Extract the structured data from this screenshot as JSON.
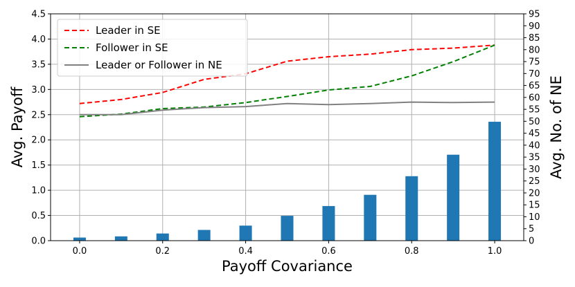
{
  "chart_data": {
    "type": "line+bar",
    "x": [
      0.0,
      0.1,
      0.2,
      0.3,
      0.4,
      0.5,
      0.6,
      0.7,
      0.8,
      0.9,
      1.0
    ],
    "xticks": [
      "0.0",
      "0.2",
      "0.4",
      "0.6",
      "0.8",
      "1.0"
    ],
    "xtick_values": [
      0.0,
      0.2,
      0.4,
      0.6,
      0.8,
      1.0
    ],
    "xlim": [
      -0.07,
      1.07
    ],
    "xlabel": "Payoff Covariance",
    "ylabel": "Avg. Payoff",
    "ylim": [
      0,
      4.5
    ],
    "yticks": [
      "0.0",
      "0.5",
      "1.0",
      "1.5",
      "2.0",
      "2.5",
      "3.0",
      "3.5",
      "4.0",
      "4.5"
    ],
    "ylabel_right": "Avg. No. of NE",
    "ylim_right": [
      0,
      95
    ],
    "yticks_right": [
      "0",
      "5",
      "10",
      "15",
      "20",
      "25",
      "30",
      "35",
      "40",
      "45",
      "50",
      "55",
      "60",
      "65",
      "70",
      "75",
      "80",
      "85",
      "90",
      "95"
    ],
    "grid": true,
    "legend_position": "top-left",
    "series": [
      {
        "name": "Leader in SE",
        "axis": "left",
        "style": "dashed",
        "color": "#ff0000",
        "values": [
          2.72,
          2.8,
          2.94,
          3.2,
          3.31,
          3.56,
          3.65,
          3.7,
          3.79,
          3.82,
          3.88
        ]
      },
      {
        "name": "Follower in SE",
        "axis": "left",
        "style": "dashed",
        "color": "#008000",
        "values": [
          2.46,
          2.51,
          2.62,
          2.65,
          2.74,
          2.86,
          2.99,
          3.06,
          3.27,
          3.55,
          3.88
        ]
      },
      {
        "name": "Leader or Follower in NE",
        "axis": "left",
        "style": "solid",
        "color": "#808080",
        "values": [
          2.5,
          2.5,
          2.59,
          2.64,
          2.66,
          2.72,
          2.7,
          2.72,
          2.75,
          2.74,
          2.75
        ]
      }
    ],
    "bars": {
      "axis": "right",
      "color": "#1f77b4",
      "values": [
        1.3,
        1.8,
        3.0,
        4.5,
        6.3,
        10.4,
        14.5,
        19.2,
        27.0,
        36.0,
        49.8
      ]
    }
  }
}
